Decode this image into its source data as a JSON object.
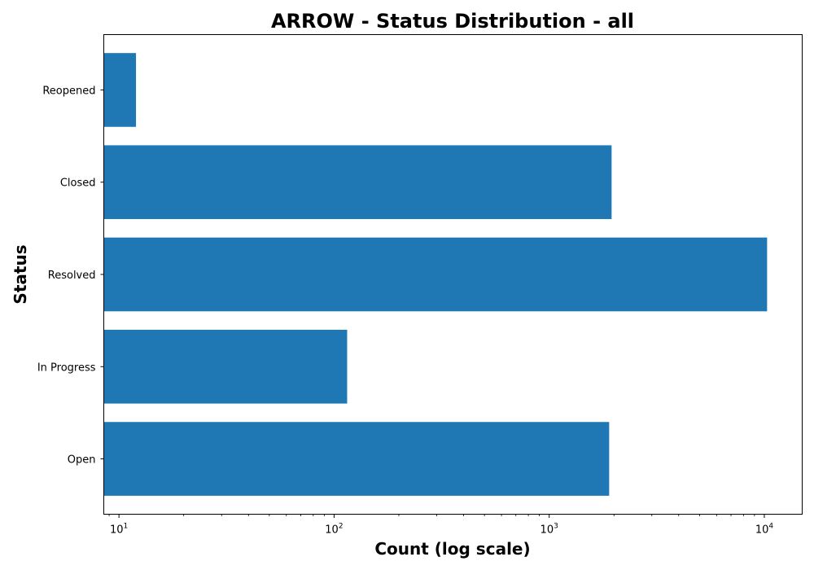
{
  "chart_data": {
    "type": "bar",
    "orientation": "horizontal",
    "title": "ARROW - Status Distribution - all",
    "xlabel": "Count (log scale)",
    "ylabel": "Status",
    "x_scale": "log",
    "xlim": [
      8.5,
      15000
    ],
    "x_ticks": [
      {
        "value": 10,
        "base": "10",
        "exp": "1"
      },
      {
        "value": 100,
        "base": "10",
        "exp": "2"
      },
      {
        "value": 1000,
        "base": "10",
        "exp": "3"
      },
      {
        "value": 10000,
        "base": "10",
        "exp": "4"
      }
    ],
    "categories": [
      "Open",
      "In Progress",
      "Resolved",
      "Closed",
      "Reopened"
    ],
    "values": [
      1900,
      115,
      10300,
      1950,
      12
    ],
    "bar_color": "#1f77b4",
    "grid": false,
    "legend": "none"
  }
}
